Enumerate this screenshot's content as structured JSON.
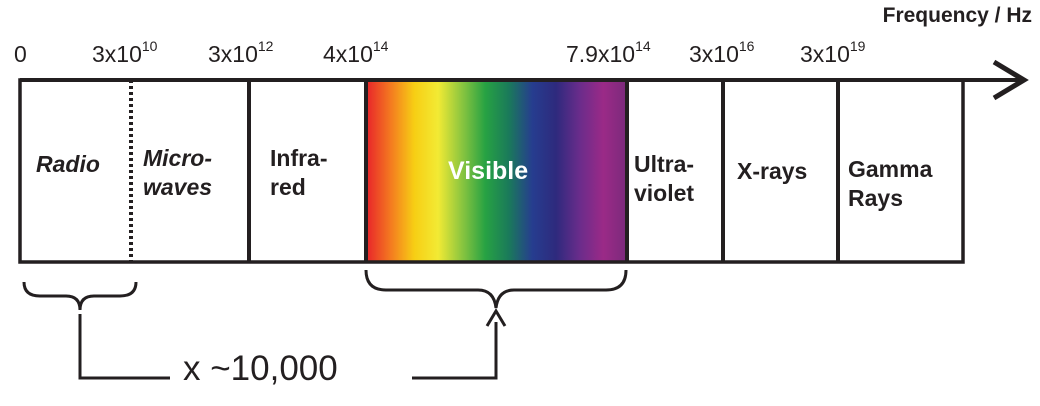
{
  "axis": {
    "title": "Frequency / Hz"
  },
  "ticks": [
    {
      "base": "0",
      "exp": ""
    },
    {
      "base": "3x10",
      "exp": "10"
    },
    {
      "base": "3x10",
      "exp": "12"
    },
    {
      "base": "4x10",
      "exp": "14"
    },
    {
      "base": "7.9x10",
      "exp": "14"
    },
    {
      "base": "3x10",
      "exp": "16"
    },
    {
      "base": "3x10",
      "exp": "19"
    }
  ],
  "bands": [
    {
      "id": "radio",
      "lines": [
        "Radio"
      ],
      "italic": true
    },
    {
      "id": "microwaves",
      "lines": [
        "Micro-",
        "waves"
      ],
      "italic": true
    },
    {
      "id": "infrared",
      "lines": [
        "Infra-",
        "red"
      ],
      "italic": false
    },
    {
      "id": "visible",
      "lines": [
        "Visible"
      ],
      "italic": false
    },
    {
      "id": "ultraviolet",
      "lines": [
        "Ultra-",
        "violet"
      ],
      "italic": false
    },
    {
      "id": "xrays",
      "lines": [
        "X-rays"
      ],
      "italic": false
    },
    {
      "id": "gamma",
      "lines": [
        "Gamma",
        "Rays"
      ],
      "italic": false
    }
  ],
  "comparison": {
    "label": "x ~10,000"
  },
  "colors": {
    "ink": "#231f20",
    "spectrum": [
      "#e8262a",
      "#f47a20",
      "#f7ce14",
      "#f2ea34",
      "#8cc63f",
      "#27a243",
      "#1a7a5a",
      "#263d8f",
      "#2e2a7d",
      "#6a2c8b",
      "#9b2a87",
      "#7a2a7b"
    ]
  }
}
